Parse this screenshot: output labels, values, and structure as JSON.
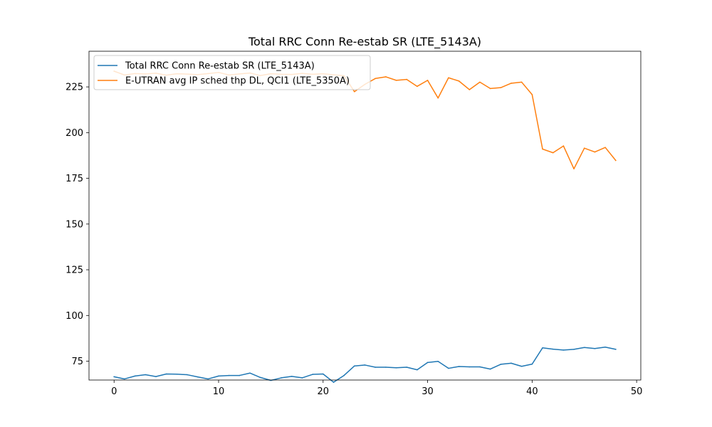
{
  "chart_data": {
    "type": "line",
    "title": "Total RRC Conn Re-estab SR (LTE_5143A)",
    "xlabel": "",
    "ylabel": "",
    "xlim": [
      -2.4,
      50.4
    ],
    "ylim": [
      64.7,
      244.5
    ],
    "xticks": [
      0,
      10,
      20,
      30,
      40,
      50
    ],
    "yticks": [
      75,
      100,
      125,
      150,
      175,
      200,
      225
    ],
    "grid": false,
    "legend_position": "top-left",
    "x": [
      0,
      1,
      2,
      3,
      4,
      5,
      6,
      7,
      8,
      9,
      10,
      11,
      12,
      13,
      14,
      15,
      16,
      17,
      18,
      19,
      20,
      21,
      22,
      23,
      24,
      25,
      26,
      27,
      28,
      29,
      30,
      31,
      32,
      33,
      34,
      35,
      36,
      37,
      38,
      39,
      40,
      41,
      42,
      43,
      44,
      45,
      46,
      47,
      48
    ],
    "series": [
      {
        "name": "Total RRC Conn Re-estab SR (LTE_5143A)",
        "color": "#1f77b4",
        "values": [
          66.5,
          65.3,
          66.9,
          67.6,
          66.6,
          68,
          67.9,
          67.6,
          66.4,
          65.3,
          66.9,
          67.2,
          67.2,
          68.5,
          66.1,
          64.5,
          65.9,
          66.7,
          65.9,
          67.8,
          68,
          63.5,
          67.2,
          72.4,
          72.9,
          71.7,
          71.7,
          71.4,
          71.7,
          70.3,
          74.3,
          74.9,
          71.1,
          72.1,
          71.9,
          71.9,
          70.7,
          73.3,
          73.9,
          72.2,
          73.4,
          82.3,
          81.6,
          81.1,
          81.5,
          82.5,
          81.9,
          82.7,
          81.5
        ]
      },
      {
        "name": "E-UTRAN avg IP sched thp DL, QCI1 (LTE_5350A)",
        "color": "#ff7f0e",
        "values": [
          233.6,
          231.5,
          232.3,
          232.1,
          232.5,
          231.4,
          232.2,
          232,
          231.7,
          232.3,
          232.9,
          231.5,
          232.1,
          232.6,
          231.2,
          232.2,
          231.9,
          231.8,
          232.4,
          231.9,
          232.2,
          231.6,
          231.1,
          222.4,
          226.4,
          229.6,
          230.5,
          228.6,
          229.1,
          225.3,
          228.6,
          218.9,
          230,
          228.2,
          223.5,
          227.6,
          224.1,
          224.6,
          227,
          227.6,
          220.8,
          191,
          189,
          192.7,
          180.2,
          191.5,
          189.4,
          191.9,
          184.8
        ]
      }
    ]
  }
}
